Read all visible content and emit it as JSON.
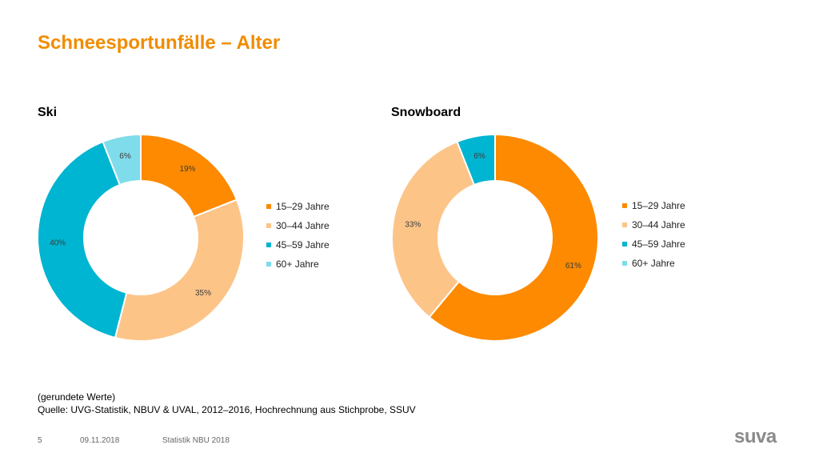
{
  "page": {
    "title": "Schneesportunfälle – Alter",
    "note": "(gerundete Werte)",
    "source": "Quelle: UVG-Statistik, NBUV & UVAL, 2012–2016, Hochrechnung aus Stichprobe, SSUV",
    "slide_number": "5",
    "date": "09.11.2018",
    "footer_label": "Statistik NBU 2018",
    "logo_text": "suva"
  },
  "colors": {
    "title": "#f08c00",
    "series": [
      "#fd8a01",
      "#fdc488",
      "#00b5d1",
      "#7fdcea"
    ]
  },
  "chart_data": [
    {
      "type": "pie",
      "title": "Ski",
      "categories": [
        "15–29 Jahre",
        "30–44 Jahre",
        "45–59 Jahre",
        "60+ Jahre"
      ],
      "values": [
        19,
        35,
        40,
        6
      ],
      "labels": [
        "19%",
        "35%",
        "40%",
        "6%"
      ],
      "legend": "right"
    },
    {
      "type": "pie",
      "title": "Snowboard",
      "categories": [
        "15–29 Jahre",
        "30–44 Jahre",
        "45–59 Jahre",
        "60+ Jahre"
      ],
      "values": [
        61,
        33,
        6,
        0
      ],
      "labels": [
        "61%",
        "33%",
        "6%",
        ""
      ],
      "legend": "right"
    }
  ]
}
